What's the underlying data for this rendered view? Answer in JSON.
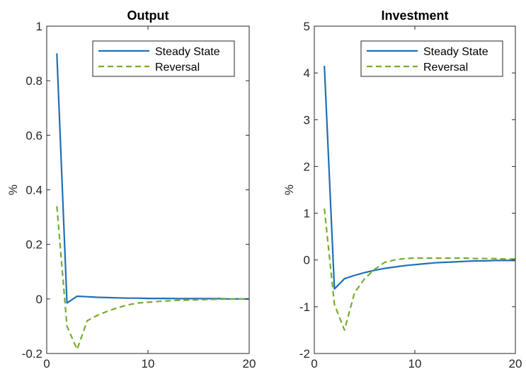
{
  "chart_data": [
    {
      "type": "line",
      "title": "Output",
      "xlabel": "",
      "ylabel": "%",
      "xlim": [
        0,
        20
      ],
      "ylim": [
        -0.2,
        1
      ],
      "xticks": [
        "0",
        "10",
        "20"
      ],
      "yticks": [
        "-0.2",
        "0",
        "0.2",
        "0.4",
        "0.6",
        "0.8",
        "1"
      ],
      "legend_position": "top-right",
      "series": [
        {
          "name": "Steady State",
          "color": "#1f6fb5",
          "style": "solid",
          "x": [
            1,
            2,
            3,
            4,
            5,
            6,
            7,
            8,
            9,
            10,
            11,
            12,
            13,
            14,
            15,
            16,
            17,
            18,
            19,
            20
          ],
          "y": [
            0.9,
            -0.015,
            0.01,
            0.008,
            0.006,
            0.005,
            0.004,
            0.003,
            0.003,
            0.002,
            0.002,
            0.002,
            0.001,
            0.001,
            0.001,
            0.001,
            0.001,
            0.0,
            0.0,
            0.0
          ]
        },
        {
          "name": "Reversal",
          "color": "#77ac30",
          "style": "dashed",
          "x": [
            1,
            2,
            3,
            4,
            5,
            6,
            7,
            8,
            9,
            10,
            11,
            12,
            13,
            14,
            15,
            16,
            17,
            18,
            19,
            20
          ],
          "y": [
            0.34,
            -0.1,
            -0.185,
            -0.08,
            -0.06,
            -0.045,
            -0.032,
            -0.022,
            -0.015,
            -0.012,
            -0.009,
            -0.007,
            -0.005,
            -0.004,
            -0.003,
            -0.002,
            -0.001,
            -0.001,
            0.0,
            0.0
          ]
        }
      ]
    },
    {
      "type": "line",
      "title": "Investment",
      "xlabel": "",
      "ylabel": "%",
      "xlim": [
        0,
        20
      ],
      "ylim": [
        -2,
        5
      ],
      "xticks": [
        "0",
        "10",
        "20"
      ],
      "yticks": [
        "-2",
        "-1",
        "0",
        "1",
        "2",
        "3",
        "4",
        "5"
      ],
      "legend_position": "top-right",
      "series": [
        {
          "name": "Steady State",
          "color": "#1f6fb5",
          "style": "solid",
          "x": [
            1,
            2,
            3,
            4,
            5,
            6,
            7,
            8,
            9,
            10,
            11,
            12,
            13,
            14,
            15,
            16,
            17,
            18,
            19,
            20
          ],
          "y": [
            4.15,
            -0.62,
            -0.4,
            -0.33,
            -0.27,
            -0.22,
            -0.18,
            -0.15,
            -0.12,
            -0.1,
            -0.08,
            -0.06,
            -0.05,
            -0.04,
            -0.03,
            -0.02,
            -0.02,
            -0.01,
            -0.01,
            -0.01
          ]
        },
        {
          "name": "Reversal",
          "color": "#77ac30",
          "style": "dashed",
          "x": [
            1,
            2,
            3,
            4,
            5,
            6,
            7,
            8,
            9,
            10,
            11,
            12,
            13,
            14,
            15,
            16,
            17,
            18,
            19,
            20
          ],
          "y": [
            1.1,
            -0.95,
            -1.5,
            -0.7,
            -0.4,
            -0.2,
            -0.05,
            0.0,
            0.03,
            0.04,
            0.04,
            0.04,
            0.04,
            0.04,
            0.04,
            0.03,
            0.03,
            0.03,
            0.02,
            0.02
          ]
        }
      ]
    }
  ]
}
